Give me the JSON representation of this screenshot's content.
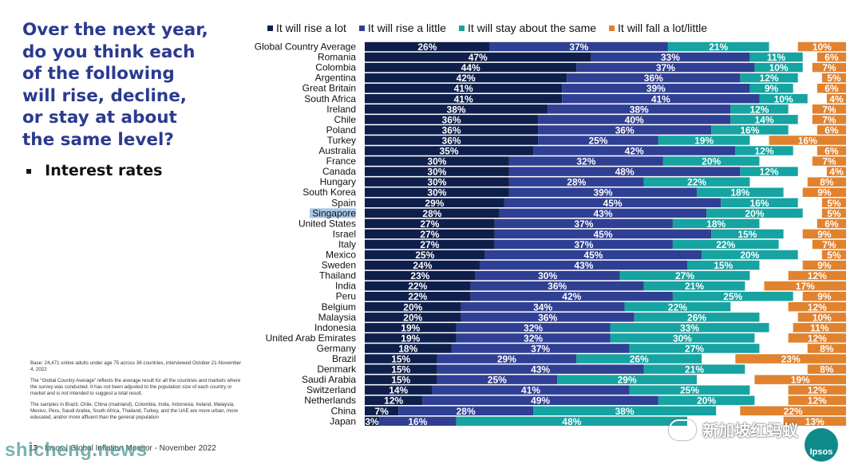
{
  "question": [
    "Over the next year,",
    "do you think each",
    "of the following",
    "will rise, decline,",
    "or stay at about",
    "the same level?"
  ],
  "topic": "Interest rates",
  "notes": [
    "Base: 24,471 online adults under age 75 across 36 countries, interviewed October 21-November 4, 2022",
    "The “Global Country Average” reflects the average result for all the countries and markets where the survey was conducted. It has not been adjusted to the population size of each country or market and is not intended to suggest a total result.",
    "The samples in Brazil, Chile, China (mainland), Colombia, India, Indonesia, Ireland, Malaysia, Mexico, Peru, Saudi Arabia, South Africa, Thailand, Turkey, and the UAE are more urban, more educated, and/or more affluent than the general population"
  ],
  "footer": "Ipsos | Global Inflation Monitor - November 2022",
  "footer_page": "13",
  "watermark": "新加坡红蚂蚁",
  "site": "shicheng.news",
  "logo": "Ipsos",
  "colors": {
    "rise_lot": "#0f1f4b",
    "rise_little": "#2f3f93",
    "stay": "#16a3a1",
    "fall": "#e1822f",
    "question": "#2b3a8f"
  },
  "chart_data": {
    "type": "bar",
    "orientation": "horizontal-stacked",
    "series": [
      {
        "name": "It will rise a lot",
        "color": "#0f1f4b"
      },
      {
        "name": "It will rise a little",
        "color": "#2f3f93"
      },
      {
        "name": "It will stay about the same",
        "color": "#16a3a1"
      },
      {
        "name": "It will fall a lot/little",
        "color": "#e1822f"
      }
    ],
    "categories": [
      "Global Country Average",
      "Romania",
      "Colombia",
      "Argentina",
      "Great Britain",
      "South Africa",
      "Ireland",
      "Chile",
      "Poland",
      "Turkey",
      "Australia",
      "France",
      "Canada",
      "Hungary",
      "South Korea",
      "Spain",
      "Singapore",
      "United States",
      "Israel",
      "Italy",
      "Mexico",
      "Sweden",
      "Thailand",
      "India",
      "Peru",
      "Belgium",
      "Malaysia",
      "Indonesia",
      "United Arab Emirates",
      "Germany",
      "Brazil",
      "Denmark",
      "Saudi Arabia",
      "Switzerland",
      "Netherlands",
      "China",
      "Japan"
    ],
    "rows": [
      [
        26,
        37,
        21,
        10
      ],
      [
        47,
        33,
        11,
        6
      ],
      [
        44,
        37,
        10,
        7
      ],
      [
        42,
        36,
        12,
        5
      ],
      [
        41,
        39,
        9,
        6
      ],
      [
        41,
        41,
        10,
        4
      ],
      [
        38,
        38,
        12,
        7
      ],
      [
        36,
        40,
        14,
        7
      ],
      [
        36,
        36,
        16,
        6
      ],
      [
        36,
        25,
        19,
        16
      ],
      [
        35,
        42,
        12,
        6
      ],
      [
        30,
        32,
        20,
        7
      ],
      [
        30,
        48,
        12,
        4
      ],
      [
        30,
        28,
        22,
        8
      ],
      [
        30,
        39,
        18,
        9
      ],
      [
        29,
        45,
        16,
        5
      ],
      [
        28,
        43,
        20,
        5
      ],
      [
        27,
        37,
        18,
        6
      ],
      [
        27,
        45,
        15,
        9
      ],
      [
        27,
        37,
        22,
        7
      ],
      [
        25,
        45,
        20,
        5
      ],
      [
        24,
        43,
        15,
        9
      ],
      [
        23,
        30,
        27,
        12
      ],
      [
        22,
        36,
        21,
        17
      ],
      [
        22,
        42,
        25,
        9
      ],
      [
        20,
        34,
        22,
        12
      ],
      [
        20,
        36,
        26,
        10
      ],
      [
        19,
        32,
        33,
        11
      ],
      [
        19,
        32,
        30,
        12
      ],
      [
        18,
        37,
        27,
        8
      ],
      [
        15,
        29,
        26,
        23
      ],
      [
        15,
        43,
        21,
        8
      ],
      [
        15,
        25,
        29,
        19
      ],
      [
        14,
        41,
        25,
        12
      ],
      [
        12,
        49,
        20,
        12
      ],
      [
        7,
        28,
        38,
        22
      ],
      [
        3,
        16,
        48,
        13
      ]
    ],
    "highlight_category": "Singapore",
    "xlim": [
      0,
      100
    ]
  }
}
